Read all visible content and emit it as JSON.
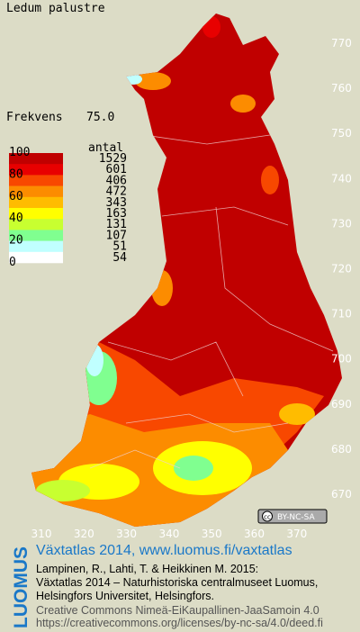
{
  "title": "Ledum palustre",
  "frequency": {
    "label": "Frekvens",
    "value": "75.0"
  },
  "legend": {
    "scale": [
      100,
      80,
      60,
      40,
      20,
      0
    ],
    "count_header": "antal",
    "counts": [
      1529,
      601,
      406,
      472,
      343,
      163,
      131,
      107,
      51,
      54
    ],
    "colors": [
      "#c00000",
      "#e80000",
      "#f84800",
      "#fc8c00",
      "#ffbc00",
      "#ffff00",
      "#c8ff30",
      "#80ff90",
      "#c0ffff",
      "#ffffff"
    ]
  },
  "grid": {
    "y_labels": [
      770,
      760,
      750,
      740,
      730,
      720,
      710,
      700,
      690,
      680,
      670
    ],
    "x_labels": [
      310,
      320,
      330,
      340,
      350,
      360,
      370
    ]
  },
  "license_badge": "BY-NC-SA",
  "footer": {
    "brand": "LUOMUS",
    "heading": "Växtatlas 2014, www.luomus.fi/vaxtatlas",
    "citation": [
      "Lampinen, R., Lahti, T. & Heikkinen M. 2015:",
      "Växtatlas 2014 – Naturhistoriska centralmuseet Luomus,",
      "Helsingfors Universitet, Helsingfors."
    ],
    "license": [
      "Creative Commons Nimeä-EiKaupallinen-JaaSamoin 4.0",
      "https://creativecommons.org/licenses/by-nc-sa/4.0/deed.fi"
    ]
  }
}
